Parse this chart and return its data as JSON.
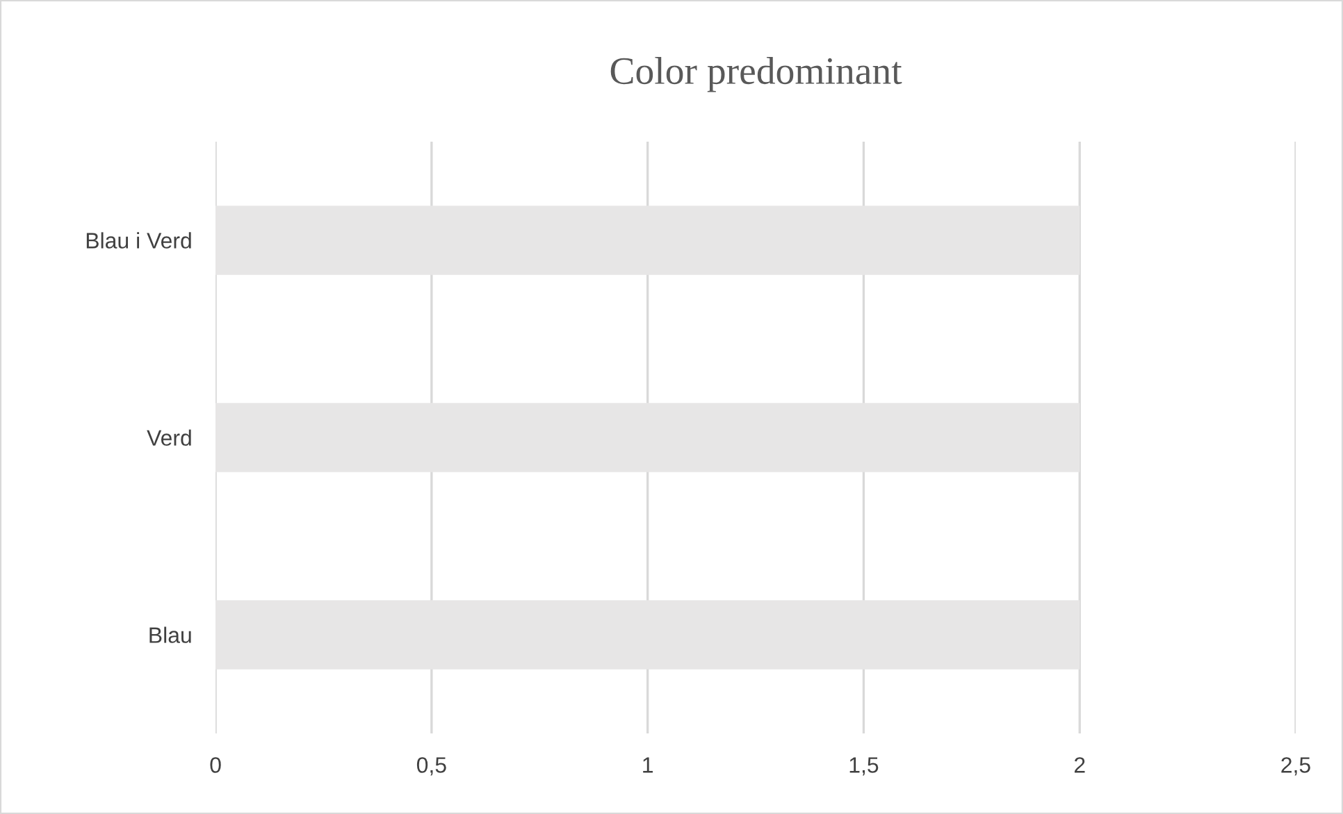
{
  "chart_data": {
    "type": "bar",
    "orientation": "horizontal",
    "title": "Color predominant",
    "categories": [
      "Blau i Verd",
      "Verd",
      "Blau"
    ],
    "values": [
      2,
      2,
      2
    ],
    "color": "#e7e6e6",
    "xlim": [
      0,
      2.5
    ],
    "xticks": [
      0,
      {
        "value": 0.5,
        "label": "0,5"
      },
      1,
      {
        "value": 1.5,
        "label": "1,5"
      },
      2,
      {
        "value": 2.5,
        "label": "2,5"
      }
    ],
    "grid": "x"
  }
}
